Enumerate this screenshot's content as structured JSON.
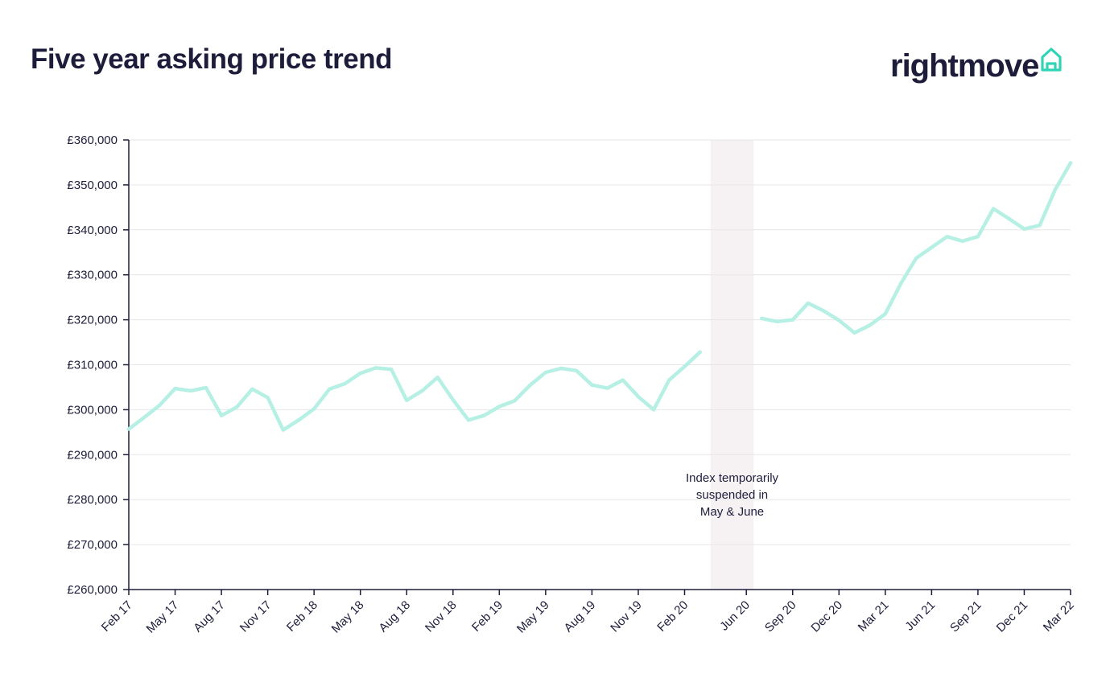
{
  "page": {
    "title": "Five year asking price trend",
    "brand": "rightmove",
    "brand_icon": "house-icon",
    "brand_color": "#2fd3b5"
  },
  "chart_data": {
    "type": "line",
    "title": "Five year asking price trend",
    "xlabel": "",
    "ylabel": "",
    "line_color": "#b6f0e4",
    "ylim": [
      260000,
      360000
    ],
    "y_ticks": [
      260000,
      270000,
      280000,
      290000,
      300000,
      310000,
      320000,
      330000,
      340000,
      350000,
      360000
    ],
    "y_tick_labels": [
      "£260,000",
      "£270,000",
      "£280,000",
      "£290,000",
      "£300,000",
      "£310,000",
      "£320,000",
      "£330,000",
      "£340,000",
      "£350,000",
      "£360,000"
    ],
    "x_tick_labels": [
      "Feb 17",
      "May 17",
      "Aug 17",
      "Nov 17",
      "Feb 18",
      "May 18",
      "Aug 18",
      "Nov 18",
      "Feb 19",
      "May 19",
      "Aug 19",
      "Nov 19",
      "Feb 20",
      "Jun 20",
      "Sep 20",
      "Dec 20",
      "Mar 21",
      "Jun 21",
      "Sep 21",
      "Dec 21",
      "Mar 22"
    ],
    "grid": true,
    "annotation": {
      "lines": [
        "Index temporarily",
        "suspended in",
        "May & June"
      ],
      "shaded_period": [
        "Apr 20",
        "Jun 20"
      ]
    },
    "series": [
      {
        "segment": "before suspension",
        "x": [
          "Feb 17",
          "Mar 17",
          "Apr 17",
          "May 17",
          "Jun 17",
          "Jul 17",
          "Aug 17",
          "Sep 17",
          "Oct 17",
          "Nov 17",
          "Dec 17",
          "Jan 18",
          "Feb 18",
          "Mar 18",
          "Apr 18",
          "May 18",
          "Jun 18",
          "Jul 18",
          "Aug 18",
          "Sep 18",
          "Oct 18",
          "Nov 18",
          "Dec 18",
          "Jan 19",
          "Feb 19",
          "Mar 19",
          "Apr 19",
          "May 19",
          "Jun 19",
          "Jul 19",
          "Aug 19",
          "Sep 19",
          "Oct 19",
          "Nov 19",
          "Dec 19",
          "Jan 20",
          "Feb 20",
          "Mar 20"
        ],
        "values": [
          295700,
          298300,
          301000,
          304700,
          304200,
          304900,
          298700,
          300600,
          304600,
          302700,
          295500,
          297700,
          300200,
          304600,
          305800,
          308100,
          309300,
          309000,
          302100,
          304200,
          307200,
          302200,
          297700,
          298700,
          300700,
          302000,
          305500,
          308300,
          309200,
          308700,
          305500,
          304800,
          306600,
          302900,
          300000,
          306600,
          309600,
          312800
        ]
      },
      {
        "segment": "after suspension",
        "x": [
          "Jul 20",
          "Aug 20",
          "Sep 20",
          "Oct 20",
          "Nov 20",
          "Dec 20",
          "Jan 21",
          "Feb 21",
          "Mar 21",
          "Apr 21",
          "May 21",
          "Jun 21",
          "Jul 21",
          "Aug 21",
          "Sep 21",
          "Oct 21",
          "Nov 21",
          "Dec 21",
          "Jan 22",
          "Feb 22",
          "Mar 22"
        ],
        "values": [
          320300,
          319600,
          320000,
          323700,
          322000,
          319900,
          317100,
          318800,
          321300,
          328000,
          333700,
          336100,
          338500,
          337500,
          338500,
          344700,
          342500,
          340200,
          341000,
          348900,
          354900
        ]
      }
    ]
  }
}
